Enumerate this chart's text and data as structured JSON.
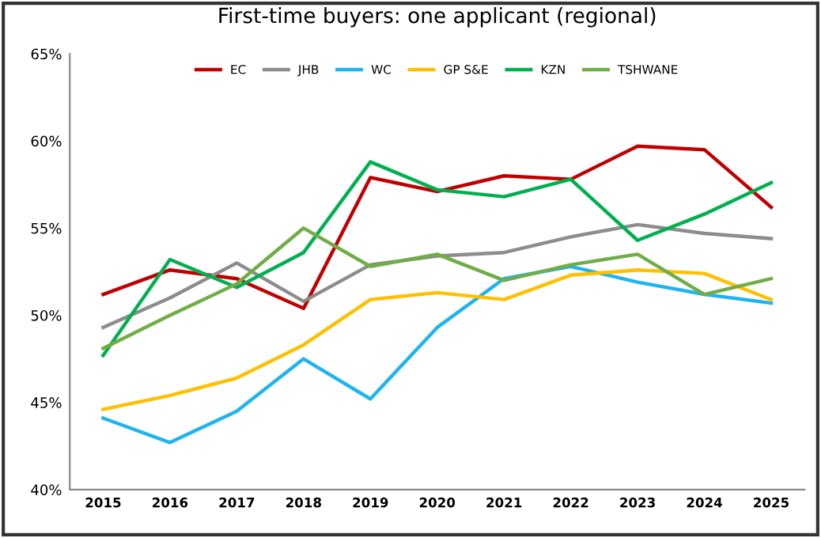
{
  "chart_data": {
    "type": "line",
    "title": "First-time buyers: one applicant (regional)",
    "categories": [
      "2015",
      "2016",
      "2017",
      "2018",
      "2019",
      "2020",
      "2021",
      "2022",
      "2023",
      "2024",
      "2025"
    ],
    "ylim": [
      40,
      65
    ],
    "yticks": [
      {
        "value": 40,
        "label": "40%"
      },
      {
        "value": 45,
        "label": "45%"
      },
      {
        "value": 50,
        "label": "50%"
      },
      {
        "value": 55,
        "label": "55%"
      },
      {
        "value": 60,
        "label": "60%"
      },
      {
        "value": 65,
        "label": "65%"
      }
    ],
    "grid": false,
    "legend": "top",
    "marker": "none",
    "line_style": "solid",
    "series": [
      {
        "name": "EC",
        "color": "#c00000",
        "values": [
          51.2,
          52.6,
          52.1,
          50.4,
          57.9,
          57.1,
          58.0,
          57.8,
          59.7,
          59.5,
          56.2
        ]
      },
      {
        "name": "JHB",
        "color": "#8c8c8c",
        "values": [
          49.3,
          51.0,
          53.0,
          50.8,
          52.9,
          53.4,
          53.6,
          54.5,
          55.2,
          54.7,
          54.4
        ]
      },
      {
        "name": "WC",
        "color": "#1fb4f0",
        "values": [
          44.1,
          42.7,
          44.5,
          47.5,
          45.2,
          49.3,
          52.1,
          52.8,
          51.9,
          51.2,
          50.7
        ]
      },
      {
        "name": "GP S&E",
        "color": "#ffc000",
        "values": [
          44.6,
          45.4,
          46.4,
          48.3,
          50.9,
          51.3,
          50.9,
          52.3,
          52.6,
          52.4,
          50.9
        ]
      },
      {
        "name": "KZN",
        "color": "#00b050",
        "values": [
          47.7,
          53.2,
          51.6,
          53.6,
          58.8,
          57.2,
          56.8,
          57.8,
          54.3,
          55.8,
          57.6
        ]
      },
      {
        "name": "TSHWANE",
        "color": "#70ad47",
        "values": [
          48.1,
          50.0,
          51.8,
          55.0,
          52.8,
          53.5,
          52.0,
          52.9,
          53.5,
          51.2,
          52.1
        ]
      }
    ]
  }
}
